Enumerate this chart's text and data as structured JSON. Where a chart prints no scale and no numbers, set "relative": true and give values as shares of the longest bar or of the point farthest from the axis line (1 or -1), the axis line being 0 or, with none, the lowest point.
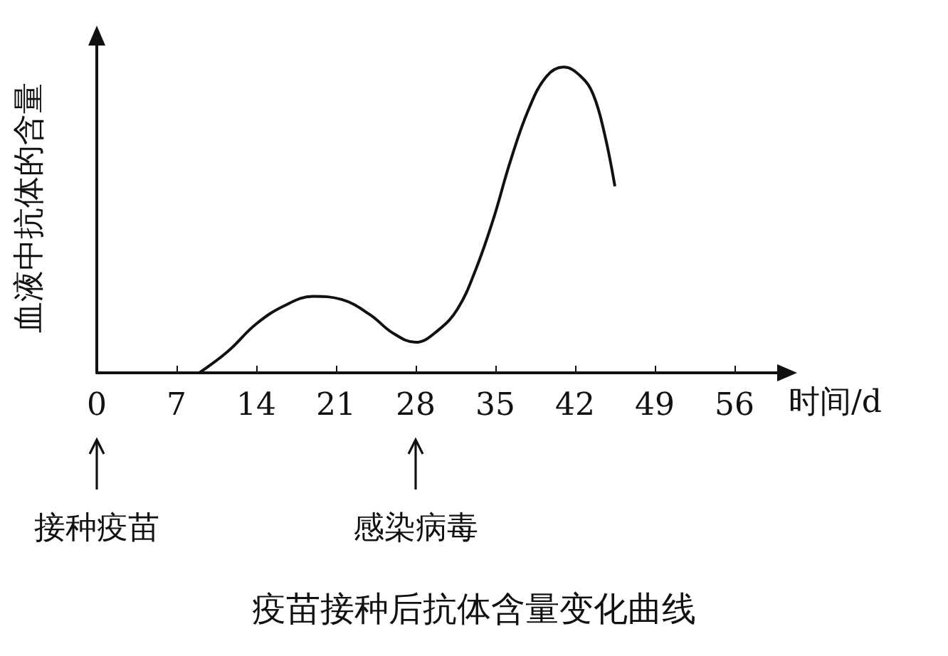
{
  "chart_data": {
    "type": "line",
    "title": "疫苗接种后抗体含量变化曲线",
    "xlabel": "时间/d",
    "ylabel": "血液中抗体的含量",
    "relative": true,
    "x": [
      9,
      11.5,
      14,
      16.5,
      19,
      21.5,
      24,
      26,
      28,
      30,
      31.7,
      33.3,
      34.8,
      36.3,
      37.9,
      39.5,
      41,
      42.5,
      43.6,
      44.6,
      45.5
    ],
    "series": [
      {
        "color": "#111111",
        "values": [
          0,
          0.07,
          0.16,
          0.22,
          0.25,
          0.24,
          0.19,
          0.13,
          0.1,
          0.14,
          0.21,
          0.34,
          0.5,
          0.69,
          0.86,
          0.97,
          1,
          0.97,
          0.91,
          0.78,
          0.61
        ]
      }
    ],
    "xlim": [
      0,
      60
    ],
    "xticks": [
      0,
      7,
      14,
      21,
      28,
      35,
      42,
      49,
      56
    ],
    "grid": false,
    "marker": "none",
    "line_style": "solid",
    "annotations": [
      "接种疫苗",
      "感染病毒"
    ]
  }
}
